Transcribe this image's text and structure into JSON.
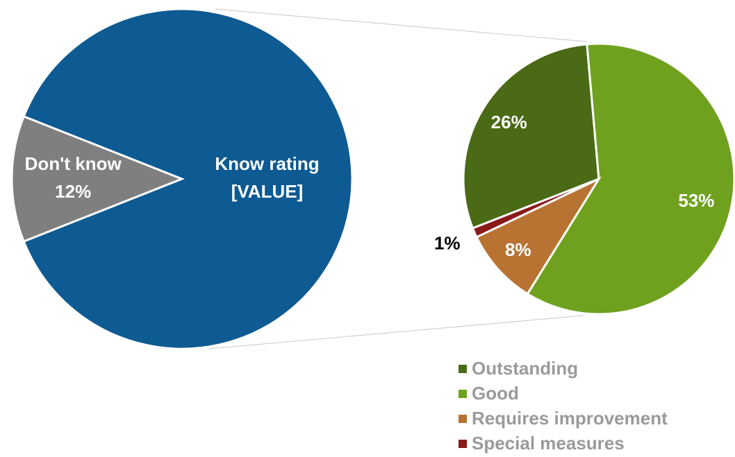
{
  "chart_data": [
    {
      "type": "pie",
      "categories": [
        "Don't know",
        "Know rating"
      ],
      "values": [
        12,
        88
      ],
      "value_labels": [
        "12%",
        "[VALUE]"
      ],
      "colors": [
        "#7f7f7f",
        "#0e5a92"
      ]
    },
    {
      "type": "pie",
      "categories": [
        "Outstanding",
        "Good",
        "Requires improvement",
        "Special measures"
      ],
      "values": [
        26,
        53,
        8,
        1
      ],
      "value_labels": [
        "26%",
        "53%",
        "8%",
        "1%"
      ],
      "colors": [
        "#4a6a16",
        "#6fa11f",
        "#b87332",
        "#8b1a1a"
      ],
      "legend": "bottom-right"
    }
  ]
}
